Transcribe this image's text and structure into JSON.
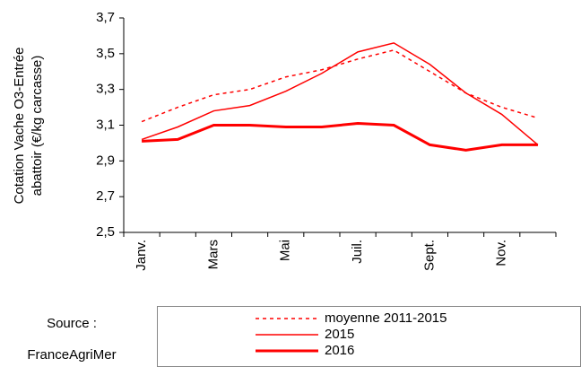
{
  "chart_data": {
    "type": "line",
    "ylabel": [
      "Cotation Vache O3-Entrée",
      "abattoir (€/kg carcasse)"
    ],
    "source": [
      "Source :",
      "FranceAgriMer"
    ],
    "categories": [
      "Janv.",
      null,
      "Mars",
      null,
      "Mai",
      null,
      "Juil.",
      null,
      "Sept.",
      null,
      "Nov.",
      null
    ],
    "ylim": [
      2.5,
      3.7
    ],
    "yticks": [
      {
        "value": 2.5,
        "label": "2,5"
      },
      {
        "value": 2.7,
        "label": "2,7"
      },
      {
        "value": 2.9,
        "label": "2,9"
      },
      {
        "value": 3.1,
        "label": "3,1"
      },
      {
        "value": 3.3,
        "label": "3,3"
      },
      {
        "value": 3.5,
        "label": "3,5"
      },
      {
        "value": 3.7,
        "label": "3,7"
      }
    ],
    "grid": false,
    "series": [
      {
        "name": "moyenne 2011-2015",
        "color": "#ff0000",
        "style": "dotted",
        "linewidth": 1.5,
        "values": [
          3.12,
          3.2,
          3.27,
          3.3,
          3.37,
          3.41,
          3.47,
          3.52,
          3.4,
          3.28,
          3.2,
          3.14
        ]
      },
      {
        "name": "2015",
        "color": "#ff0000",
        "style": "solid",
        "linewidth": 1.5,
        "values": [
          3.02,
          3.09,
          3.18,
          3.21,
          3.29,
          3.39,
          3.51,
          3.56,
          3.44,
          3.28,
          3.16,
          2.99
        ]
      },
      {
        "name": "2016",
        "color": "#ff0000",
        "style": "solid",
        "linewidth": 3,
        "values": [
          3.01,
          3.02,
          3.1,
          3.1,
          3.09,
          3.09,
          3.11,
          3.1,
          2.99,
          2.96,
          2.99,
          2.99
        ]
      }
    ]
  }
}
